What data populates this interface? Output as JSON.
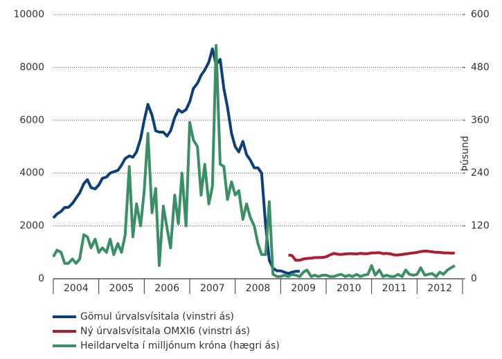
{
  "chart_data": {
    "type": "line",
    "x": [
      2004,
      2004.08,
      2004.17,
      2004.25,
      2004.33,
      2004.42,
      2004.5,
      2004.58,
      2004.67,
      2004.75,
      2004.83,
      2004.92,
      2005,
      2005.08,
      2005.17,
      2005.25,
      2005.33,
      2005.42,
      2005.5,
      2005.58,
      2005.67,
      2005.75,
      2005.83,
      2005.92,
      2006,
      2006.08,
      2006.17,
      2006.25,
      2006.33,
      2006.42,
      2006.5,
      2006.58,
      2006.67,
      2006.75,
      2006.83,
      2006.92,
      2007,
      2007.08,
      2007.17,
      2007.25,
      2007.33,
      2007.42,
      2007.5,
      2007.58,
      2007.67,
      2007.75,
      2007.83,
      2007.92,
      2008,
      2008.08,
      2008.17,
      2008.25,
      2008.33,
      2008.42,
      2008.5,
      2008.58,
      2008.67,
      2008.75,
      2008.83,
      2008.92,
      2009,
      2009.08,
      2009.17,
      2009.25,
      2009.33,
      2009.42,
      2009.5,
      2009.58,
      2009.67,
      2009.75,
      2009.83,
      2009.92,
      2010,
      2010.08,
      2010.17,
      2010.25,
      2010.33,
      2010.42,
      2010.5,
      2010.58,
      2010.67,
      2010.75,
      2010.83,
      2010.92,
      2011,
      2011.08,
      2011.17,
      2011.25,
      2011.33,
      2011.42,
      2011.5,
      2011.58,
      2011.67,
      2011.75,
      2011.83,
      2011.92,
      2012,
      2012.08,
      2012.17,
      2012.25,
      2012.33,
      2012.42,
      2012.5,
      2012.58,
      2012.67,
      2012.75,
      2012.83,
      2012.92
    ],
    "series": [
      {
        "name": "Gömul úrvalsvísitala (vinstri ás)",
        "color": "#0d3f7a",
        "axis": "y",
        "values": [
          2300,
          2450,
          2550,
          2700,
          2700,
          2850,
          3050,
          3250,
          3600,
          3750,
          3450,
          3400,
          3550,
          3800,
          3850,
          4000,
          4050,
          4100,
          4300,
          4550,
          4650,
          4600,
          4800,
          5300,
          6000,
          6600,
          6200,
          5600,
          5550,
          5550,
          5400,
          5600,
          6100,
          6400,
          6300,
          6400,
          6700,
          7200,
          7400,
          7700,
          7900,
          8200,
          8700,
          8100,
          8300,
          7200,
          6500,
          5500,
          5000,
          4800,
          5200,
          4700,
          4500,
          4200,
          4200,
          4000,
          2000,
          700,
          400,
          300,
          300,
          250,
          200,
          250,
          280,
          280,
          null,
          null,
          null,
          null,
          null,
          null,
          null,
          null,
          null,
          null,
          null,
          null,
          null,
          null,
          null,
          null,
          null,
          null,
          null,
          null,
          null,
          null,
          null,
          null,
          null,
          null,
          null,
          null,
          null,
          null,
          null,
          null,
          null,
          null,
          null,
          null,
          null,
          null,
          null,
          null,
          null,
          null
        ]
      },
      {
        "name": "Ný úrvalsvísitala OMXI6 (vinstri ás)",
        "color": "#b01c2e",
        "axis": "y",
        "values": [
          null,
          null,
          null,
          null,
          null,
          null,
          null,
          null,
          null,
          null,
          null,
          null,
          null,
          null,
          null,
          null,
          null,
          null,
          null,
          null,
          null,
          null,
          null,
          null,
          null,
          null,
          null,
          null,
          null,
          null,
          null,
          null,
          null,
          null,
          null,
          null,
          null,
          null,
          null,
          null,
          null,
          null,
          null,
          null,
          null,
          null,
          null,
          null,
          null,
          null,
          null,
          null,
          null,
          null,
          null,
          null,
          null,
          null,
          null,
          null,
          null,
          null,
          900,
          880,
          700,
          700,
          750,
          770,
          780,
          800,
          800,
          810,
          830,
          900,
          960,
          930,
          920,
          940,
          950,
          950,
          940,
          960,
          950,
          950,
          980,
          980,
          990,
          950,
          960,
          940,
          900,
          900,
          920,
          940,
          960,
          980,
          1000,
          1030,
          1050,
          1040,
          1020,
          1000,
          1000,
          980,
          980,
          970,
          970,
          null
        ]
      },
      {
        "name": "Heildarvelta í milljónum króna (hægri ás)",
        "color": "#3a8f63",
        "axis": "y2",
        "values": [
          50,
          65,
          60,
          35,
          35,
          45,
          35,
          45,
          100,
          95,
          70,
          90,
          60,
          70,
          60,
          90,
          55,
          80,
          60,
          100,
          255,
          95,
          170,
          120,
          200,
          330,
          150,
          205,
          30,
          165,
          115,
          70,
          190,
          125,
          240,
          120,
          355,
          315,
          300,
          190,
          260,
          170,
          210,
          530,
          260,
          255,
          180,
          220,
          190,
          200,
          135,
          170,
          140,
          120,
          80,
          55,
          55,
          175,
          10,
          5,
          5,
          8,
          5,
          10,
          8,
          5,
          15,
          20,
          5,
          8,
          5,
          8,
          8,
          5,
          5,
          8,
          10,
          5,
          8,
          5,
          10,
          5,
          8,
          10,
          30,
          8,
          20,
          5,
          8,
          5,
          5,
          10,
          5,
          20,
          10,
          8,
          10,
          25,
          8,
          10,
          12,
          5,
          15,
          10,
          20,
          25,
          30,
          null
        ]
      }
    ],
    "xlim": [
      2004,
      2013
    ],
    "xticks": [
      2004,
      2005,
      2006,
      2007,
      2008,
      2009,
      2010,
      2011,
      2012,
      2013
    ],
    "x_labels": [
      "2004",
      "2005",
      "2006",
      "2007",
      "2008",
      "2009",
      "2010",
      "2011",
      "2012"
    ],
    "ylim": [
      0,
      10000
    ],
    "yticks": [
      0,
      2000,
      4000,
      6000,
      8000,
      10000
    ],
    "y2lim": [
      0,
      600
    ],
    "y2ticks": [
      0,
      120,
      240,
      360,
      480,
      600
    ],
    "y2label": "Þúsund",
    "grid": true
  }
}
